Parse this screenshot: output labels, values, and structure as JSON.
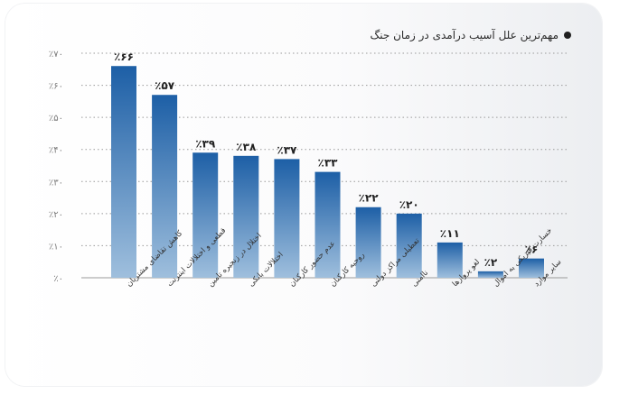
{
  "chart_data": {
    "type": "bar",
    "title": "مهم‌ترین علل آسیب درآمدی در زمان جنگ",
    "categories": [
      "کاهش تقاضای مشتریان",
      "قطعی و اختلالات اینترنت",
      "اختلال در زنجیره تامین",
      "اختلالات بانکی",
      "عدم حضور کارکنان",
      "روحیه کارکنان",
      "تعطیلی مراکز دولتی",
      "ناامنی",
      "لغو پروازها",
      "خسارت فیزیکی به اموال",
      "سایر موارد"
    ],
    "values": [
      66,
      57,
      39,
      38,
      37,
      33,
      22,
      20,
      11,
      2,
      6
    ],
    "value_labels": [
      "٪۶۶",
      "٪۵۷",
      "٪۳۹",
      "٪۳۸",
      "٪۳۷",
      "٪۳۳",
      "٪۲۲",
      "٪۲۰",
      "٪۱۱",
      "٪۲",
      "٪۶"
    ],
    "y_ticks": [
      0,
      10,
      20,
      30,
      40,
      50,
      60,
      70
    ],
    "y_tick_labels": [
      "٪۰",
      "٪۱۰",
      "٪۲۰",
      "٪۳۰",
      "٪۴۰",
      "٪۵۰",
      "٪۶۰",
      "٪۷۰"
    ],
    "ylim": [
      0,
      70
    ],
    "grid": true,
    "legend": "none",
    "colors": {
      "bar_top": "#1d5fa6",
      "bar_bottom": "#9fbfdd",
      "grid": "#9a9a9a"
    }
  }
}
